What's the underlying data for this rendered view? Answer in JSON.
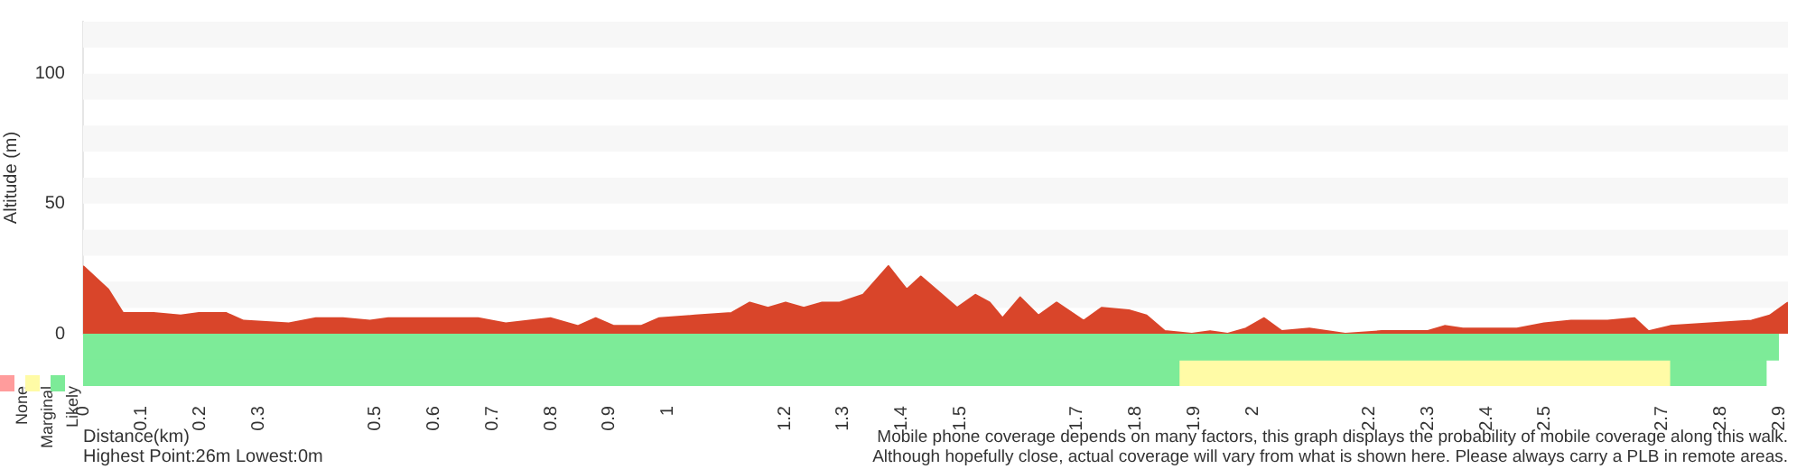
{
  "chart_data": [
    {
      "type": "area",
      "ylabel": "Altitude (m)",
      "tick_labels": "y",
      "legend": false,
      "xlim": [
        0,
        2.9
      ],
      "ylim": [
        0,
        120
      ],
      "yticks": [
        0,
        50,
        100
      ],
      "bands": [
        {
          "axis": "y",
          "from": 10,
          "to": 20,
          "color": "#f7f7f7"
        },
        {
          "axis": "y",
          "from": 30,
          "to": 40,
          "color": "#f7f7f7"
        },
        {
          "axis": "y",
          "from": 50,
          "to": 60,
          "color": "#f7f7f7"
        },
        {
          "axis": "y",
          "from": 70,
          "to": 80,
          "color": "#f7f7f7"
        },
        {
          "axis": "y",
          "from": 90,
          "to": 100,
          "color": "#f7f7f7"
        },
        {
          "axis": "y",
          "from": 110,
          "to": 120,
          "color": "#f7f7f7"
        }
      ],
      "series": [
        {
          "color": "#d9452a",
          "x": [
            0,
            0.043,
            0.068,
            0.12,
            0.166,
            0.197,
            0.243,
            0.273,
            0.35,
            0.396,
            0.442,
            0.488,
            0.519,
            0.565,
            0.611,
            0.672,
            0.719,
            0.795,
            0.842,
            0.872,
            0.903,
            0.949,
            0.98,
            1.041,
            1.103,
            1.134,
            1.165,
            1.195,
            1.226,
            1.257,
            1.287,
            1.327,
            1.37,
            1.401,
            1.425,
            1.487,
            1.518,
            1.542,
            1.564,
            1.594,
            1.625,
            1.656,
            1.702,
            1.733,
            1.779,
            1.809,
            1.84,
            1.886,
            1.917,
            1.947,
            1.978,
            2.009,
            2.039,
            2.086,
            2.147,
            2.209,
            2.286,
            2.316,
            2.347,
            2.439,
            2.485,
            2.531,
            2.593,
            2.639,
            2.663,
            2.7,
            2.838,
            2.869,
            2.9
          ],
          "values": [
            26,
            17,
            8,
            8,
            7,
            8,
            8,
            5,
            4,
            6,
            6,
            5,
            6,
            6,
            6,
            6,
            4,
            6,
            3,
            6,
            3,
            3,
            6,
            7,
            8,
            12,
            10,
            12,
            10,
            12,
            12,
            15,
            26,
            17,
            22,
            10,
            15,
            12,
            6,
            14,
            7,
            12,
            5,
            10,
            9,
            7,
            1,
            0,
            1,
            0,
            2,
            6,
            1,
            2,
            0,
            1,
            1,
            3,
            2,
            2,
            4,
            5,
            5,
            6,
            1,
            3,
            5,
            7,
            12
          ]
        }
      ]
    },
    {
      "type": "bar",
      "orientation": "horizontal",
      "stacked": true,
      "tick_labels": "x",
      "legend": "bottom left",
      "xlabel": "Distance(km)",
      "categories": [
        null,
        null
      ],
      "xlim": [
        0,
        2.9
      ],
      "xticks": [
        0,
        0.1,
        0.2,
        0.3,
        0.5,
        0.6,
        0.7,
        0.8,
        0.9,
        1,
        1.2,
        1.3,
        1.4,
        1.5,
        1.7,
        1.8,
        1.9,
        2,
        2.2,
        2.3,
        2.4,
        2.5,
        2.7,
        2.8,
        2.9
      ],
      "series": [
        {
          "name": "Likely",
          "color": "#7deb98",
          "values": [
            2.9,
            1.874
          ]
        },
        {
          "name": "Marginal",
          "color": "#fffba6",
          "values": [
            null,
            0.839
          ]
        },
        {
          "color": "#7deb98",
          "values": [
            null,
            0.165
          ]
        },
        {
          "name": "None",
          "color": "#ff9c9c",
          "values": [
            null,
            null
          ]
        }
      ],
      "annotations": [
        "Highest Point:26m Lowest:0m",
        "Mobile phone coverage depends on many factors, this graph displays the probability of mobile coverage along this walk.",
        "Although hopefully close, actual coverage will vary from what is shown here. Please always carry a PLB in remote areas."
      ]
    }
  ]
}
